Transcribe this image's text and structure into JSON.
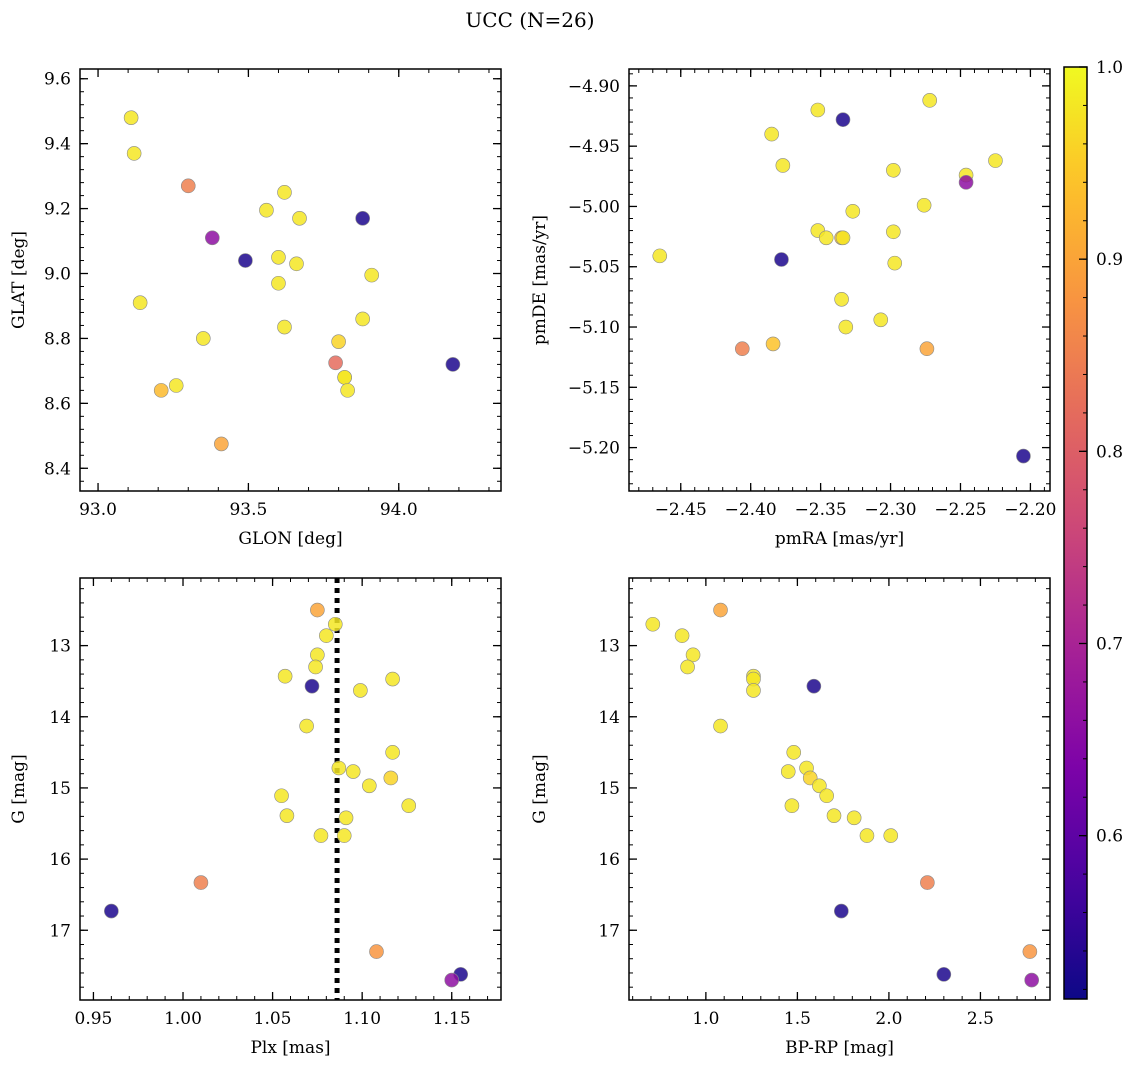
{
  "figure": {
    "title": "UCC (N=26)"
  },
  "colorbar": {
    "ticks": [
      0.6,
      0.7,
      0.8,
      0.9,
      1.0
    ],
    "tick_labels": [
      "0.6",
      "0.7",
      "0.8",
      "0.9",
      "1.0"
    ],
    "range": [
      0.515,
      1.0
    ],
    "colormap": "plasma"
  },
  "chart_data": [
    {
      "type": "scatter",
      "xlabel": "GLON [deg]",
      "ylabel": "GLAT [deg]",
      "xlim": [
        92.94,
        94.34
      ],
      "ylim": [
        8.33,
        9.63
      ],
      "xticks": [
        93.0,
        93.5,
        94.0
      ],
      "xtick_labels": [
        "93.0",
        "93.5",
        "94.0"
      ],
      "yticks": [
        8.4,
        8.6,
        8.8,
        9.0,
        9.2,
        9.4,
        9.6
      ],
      "ytick_labels": [
        "8.4",
        "8.6",
        "8.8",
        "9.0",
        "9.2",
        "9.4",
        "9.6"
      ],
      "points": [
        {
          "x": 93.11,
          "y": 9.48,
          "c": 0.98
        },
        {
          "x": 93.12,
          "y": 9.37,
          "c": 0.98
        },
        {
          "x": 93.3,
          "y": 9.27,
          "c": 0.85
        },
        {
          "x": 93.62,
          "y": 9.25,
          "c": 0.98
        },
        {
          "x": 93.56,
          "y": 9.195,
          "c": 0.98
        },
        {
          "x": 93.67,
          "y": 9.17,
          "c": 0.98
        },
        {
          "x": 93.88,
          "y": 9.17,
          "c": 0.53
        },
        {
          "x": 93.38,
          "y": 9.11,
          "c": 0.66
        },
        {
          "x": 93.49,
          "y": 9.04,
          "c": 0.53
        },
        {
          "x": 93.6,
          "y": 9.05,
          "c": 0.98
        },
        {
          "x": 93.66,
          "y": 9.03,
          "c": 0.98
        },
        {
          "x": 93.91,
          "y": 8.995,
          "c": 0.98
        },
        {
          "x": 93.6,
          "y": 8.97,
          "c": 0.98
        },
        {
          "x": 93.14,
          "y": 8.91,
          "c": 0.98
        },
        {
          "x": 93.88,
          "y": 8.86,
          "c": 0.98
        },
        {
          "x": 93.62,
          "y": 8.835,
          "c": 0.98
        },
        {
          "x": 93.35,
          "y": 8.8,
          "c": 0.98
        },
        {
          "x": 93.8,
          "y": 8.79,
          "c": 0.96
        },
        {
          "x": 93.79,
          "y": 8.725,
          "c": 0.82
        },
        {
          "x": 94.18,
          "y": 8.72,
          "c": 0.53
        },
        {
          "x": 93.82,
          "y": 8.68,
          "c": 0.98
        },
        {
          "x": 93.82,
          "y": 8.68,
          "c": 0.98
        },
        {
          "x": 93.26,
          "y": 8.655,
          "c": 0.98
        },
        {
          "x": 93.21,
          "y": 8.64,
          "c": 0.93
        },
        {
          "x": 93.83,
          "y": 8.64,
          "c": 0.98
        },
        {
          "x": 93.41,
          "y": 8.475,
          "c": 0.9
        }
      ]
    },
    {
      "type": "scatter",
      "xlabel": "pmRA [mas/yr]",
      "ylabel": "pmDE [mas/yr]",
      "xlim": [
        -2.487,
        -2.186
      ],
      "ylim": [
        -5.236,
        -4.886
      ],
      "xticks": [
        -2.45,
        -2.4,
        -2.35,
        -2.3,
        -2.25,
        -2.2
      ],
      "xtick_labels": [
        "−2.45",
        "−2.40",
        "−2.35",
        "−2.30",
        "−2.25",
        "−2.20"
      ],
      "yticks": [
        -5.2,
        -5.15,
        -5.1,
        -5.05,
        -5.0,
        -4.95,
        -4.9
      ],
      "ytick_labels": [
        "−5.20",
        "−5.15",
        "−5.10",
        "−5.05",
        "−5.00",
        "−4.95",
        "−4.90"
      ],
      "points": [
        {
          "x": -2.272,
          "y": -4.912,
          "c": 0.98
        },
        {
          "x": -2.352,
          "y": -4.92,
          "c": 0.98
        },
        {
          "x": -2.334,
          "y": -4.928,
          "c": 0.53
        },
        {
          "x": -2.385,
          "y": -4.94,
          "c": 0.98
        },
        {
          "x": -2.377,
          "y": -4.966,
          "c": 0.98
        },
        {
          "x": -2.298,
          "y": -4.97,
          "c": 0.98
        },
        {
          "x": -2.225,
          "y": -4.962,
          "c": 0.98
        },
        {
          "x": -2.246,
          "y": -4.974,
          "c": 0.98
        },
        {
          "x": -2.246,
          "y": -4.98,
          "c": 0.66
        },
        {
          "x": -2.276,
          "y": -4.999,
          "c": 0.98
        },
        {
          "x": -2.327,
          "y": -5.004,
          "c": 0.98
        },
        {
          "x": -2.352,
          "y": -5.02,
          "c": 0.98
        },
        {
          "x": -2.346,
          "y": -5.026,
          "c": 0.98
        },
        {
          "x": -2.335,
          "y": -5.026,
          "c": 0.93
        },
        {
          "x": -2.334,
          "y": -5.026,
          "c": 0.98
        },
        {
          "x": -2.298,
          "y": -5.021,
          "c": 0.98
        },
        {
          "x": -2.465,
          "y": -5.041,
          "c": 0.98
        },
        {
          "x": -2.378,
          "y": -5.044,
          "c": 0.53
        },
        {
          "x": -2.297,
          "y": -5.047,
          "c": 0.98
        },
        {
          "x": -2.335,
          "y": -5.077,
          "c": 0.98
        },
        {
          "x": -2.307,
          "y": -5.094,
          "c": 0.98
        },
        {
          "x": -2.332,
          "y": -5.1,
          "c": 0.98
        },
        {
          "x": -2.384,
          "y": -5.114,
          "c": 0.94
        },
        {
          "x": -2.406,
          "y": -5.118,
          "c": 0.85
        },
        {
          "x": -2.274,
          "y": -5.118,
          "c": 0.9
        },
        {
          "x": -2.205,
          "y": -5.207,
          "c": 0.53
        }
      ]
    },
    {
      "type": "scatter",
      "xlabel": "Plx [mas]",
      "ylabel": "G [mag]",
      "xlim": [
        0.9425,
        1.1775
      ],
      "ylim": [
        17.98,
        12.05
      ],
      "y_inverted": true,
      "xticks": [
        0.95,
        1.0,
        1.05,
        1.1,
        1.15
      ],
      "xtick_labels": [
        "0.95",
        "1.00",
        "1.05",
        "1.10",
        "1.15"
      ],
      "yticks": [
        13,
        14,
        15,
        16,
        17
      ],
      "ytick_labels": [
        "13",
        "14",
        "15",
        "16",
        "17"
      ],
      "vline": 1.086,
      "points": [
        {
          "x": 1.075,
          "y": 12.5,
          "c": 0.9
        },
        {
          "x": 1.085,
          "y": 12.7,
          "c": 0.98
        },
        {
          "x": 1.08,
          "y": 12.86,
          "c": 0.98
        },
        {
          "x": 1.075,
          "y": 13.13,
          "c": 0.98
        },
        {
          "x": 1.074,
          "y": 13.3,
          "c": 0.98
        },
        {
          "x": 1.057,
          "y": 13.43,
          "c": 0.98
        },
        {
          "x": 1.117,
          "y": 13.47,
          "c": 0.98
        },
        {
          "x": 1.072,
          "y": 13.57,
          "c": 0.53
        },
        {
          "x": 1.099,
          "y": 13.63,
          "c": 0.98
        },
        {
          "x": 1.069,
          "y": 14.13,
          "c": 0.98
        },
        {
          "x": 1.117,
          "y": 14.5,
          "c": 0.98
        },
        {
          "x": 1.087,
          "y": 14.72,
          "c": 0.98
        },
        {
          "x": 1.095,
          "y": 14.77,
          "c": 0.98
        },
        {
          "x": 1.116,
          "y": 14.86,
          "c": 0.96
        },
        {
          "x": 1.104,
          "y": 14.97,
          "c": 0.98
        },
        {
          "x": 1.055,
          "y": 15.11,
          "c": 0.98
        },
        {
          "x": 1.126,
          "y": 15.25,
          "c": 0.98
        },
        {
          "x": 1.058,
          "y": 15.39,
          "c": 0.98
        },
        {
          "x": 1.091,
          "y": 15.42,
          "c": 0.98
        },
        {
          "x": 1.077,
          "y": 15.67,
          "c": 0.98
        },
        {
          "x": 1.09,
          "y": 15.67,
          "c": 0.98
        },
        {
          "x": 1.01,
          "y": 16.33,
          "c": 0.85
        },
        {
          "x": 0.96,
          "y": 16.73,
          "c": 0.53
        },
        {
          "x": 1.108,
          "y": 17.3,
          "c": 0.88
        },
        {
          "x": 1.155,
          "y": 17.62,
          "c": 0.53
        },
        {
          "x": 1.15,
          "y": 17.7,
          "c": 0.66
        }
      ]
    },
    {
      "type": "scatter",
      "xlabel": "BP-RP [mag]",
      "ylabel": "G [mag]",
      "xlim": [
        0.58,
        2.88
      ],
      "ylim": [
        17.98,
        12.05
      ],
      "y_inverted": true,
      "xticks": [
        1.0,
        1.5,
        2.0,
        2.5
      ],
      "xtick_labels": [
        "1.0",
        "1.5",
        "2.0",
        "2.5"
      ],
      "yticks": [
        13,
        14,
        15,
        16,
        17
      ],
      "ytick_labels": [
        "13",
        "14",
        "15",
        "16",
        "17"
      ],
      "points": [
        {
          "x": 0.71,
          "y": 12.7,
          "c": 0.98
        },
        {
          "x": 1.08,
          "y": 12.5,
          "c": 0.9
        },
        {
          "x": 0.87,
          "y": 12.86,
          "c": 0.98
        },
        {
          "x": 0.93,
          "y": 13.13,
          "c": 0.98
        },
        {
          "x": 0.9,
          "y": 13.3,
          "c": 0.98
        },
        {
          "x": 1.26,
          "y": 13.43,
          "c": 0.98
        },
        {
          "x": 1.26,
          "y": 13.47,
          "c": 0.98
        },
        {
          "x": 1.26,
          "y": 13.63,
          "c": 0.98
        },
        {
          "x": 1.59,
          "y": 13.57,
          "c": 0.53
        },
        {
          "x": 1.08,
          "y": 14.13,
          "c": 0.98
        },
        {
          "x": 1.48,
          "y": 14.5,
          "c": 0.98
        },
        {
          "x": 1.55,
          "y": 14.72,
          "c": 0.98
        },
        {
          "x": 1.45,
          "y": 14.77,
          "c": 0.98
        },
        {
          "x": 1.57,
          "y": 14.86,
          "c": 0.96
        },
        {
          "x": 1.62,
          "y": 14.97,
          "c": 0.98
        },
        {
          "x": 1.66,
          "y": 15.11,
          "c": 0.98
        },
        {
          "x": 1.47,
          "y": 15.25,
          "c": 0.98
        },
        {
          "x": 1.7,
          "y": 15.39,
          "c": 0.98
        },
        {
          "x": 1.81,
          "y": 15.42,
          "c": 0.98
        },
        {
          "x": 1.88,
          "y": 15.67,
          "c": 0.98
        },
        {
          "x": 2.01,
          "y": 15.67,
          "c": 0.98
        },
        {
          "x": 2.21,
          "y": 16.33,
          "c": 0.85
        },
        {
          "x": 1.74,
          "y": 16.73,
          "c": 0.53
        },
        {
          "x": 2.77,
          "y": 17.3,
          "c": 0.88
        },
        {
          "x": 2.3,
          "y": 17.62,
          "c": 0.53
        },
        {
          "x": 2.78,
          "y": 17.7,
          "c": 0.66
        }
      ]
    }
  ]
}
